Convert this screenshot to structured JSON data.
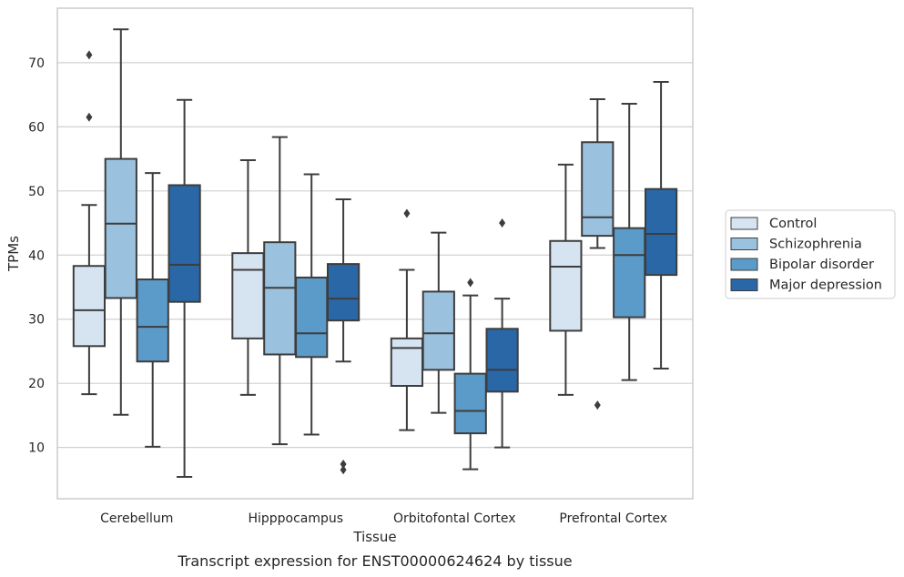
{
  "caption": "Transcript expression for ENST00000624624 by tissue",
  "chart_data": {
    "type": "box",
    "title": "",
    "xlabel": "Tissue",
    "ylabel": "TPMs",
    "categories": [
      "Cerebellum",
      "Hipppocampus",
      "Orbitofontal Cortex",
      "Prefrontal Cortex"
    ],
    "ylim": [
      2,
      78.5
    ],
    "yticks": [
      10,
      20,
      30,
      40,
      50,
      60,
      70
    ],
    "grid": "horizontal",
    "legend_position": "right",
    "series": [
      {
        "name": "Control",
        "color": "#d6e4f2",
        "boxes": [
          {
            "whislo": 18.3,
            "q1": 25.8,
            "med": 31.4,
            "q3": 38.3,
            "whishi": 47.8,
            "fliers": [
              71.2,
              61.5
            ]
          },
          {
            "whislo": 18.2,
            "q1": 27.0,
            "med": 37.7,
            "q3": 40.3,
            "whishi": 54.8,
            "fliers": []
          },
          {
            "whislo": 12.7,
            "q1": 19.6,
            "med": 25.5,
            "q3": 27.0,
            "whishi": 37.7,
            "fliers": [
              46.5
            ]
          },
          {
            "whislo": 18.2,
            "q1": 28.2,
            "med": 38.2,
            "q3": 42.2,
            "whishi": 54.1,
            "fliers": []
          }
        ]
      },
      {
        "name": "Schizophrenia",
        "color": "#9ac2df",
        "boxes": [
          {
            "whislo": 15.1,
            "q1": 33.3,
            "med": 44.9,
            "q3": 55.0,
            "whishi": 75.2,
            "fliers": []
          },
          {
            "whislo": 10.5,
            "q1": 24.5,
            "med": 34.9,
            "q3": 42.0,
            "whishi": 58.4,
            "fliers": []
          },
          {
            "whislo": 15.4,
            "q1": 22.1,
            "med": 27.8,
            "q3": 34.3,
            "whishi": 43.5,
            "fliers": []
          },
          {
            "whislo": 41.1,
            "q1": 43.0,
            "med": 45.9,
            "q3": 57.6,
            "whishi": 64.3,
            "fliers": [
              16.6
            ]
          }
        ]
      },
      {
        "name": "Bipolar disorder",
        "color": "#5b9bc9",
        "boxes": [
          {
            "whislo": 10.1,
            "q1": 23.4,
            "med": 28.8,
            "q3": 36.2,
            "whishi": 52.8,
            "fliers": []
          },
          {
            "whislo": 12.0,
            "q1": 24.1,
            "med": 27.8,
            "q3": 36.5,
            "whishi": 52.6,
            "fliers": []
          },
          {
            "whislo": 6.6,
            "q1": 12.2,
            "med": 15.7,
            "q3": 21.5,
            "whishi": 33.7,
            "fliers": [
              35.7
            ]
          },
          {
            "whislo": 20.5,
            "q1": 30.3,
            "med": 40.0,
            "q3": 44.2,
            "whishi": 63.6,
            "fliers": []
          }
        ]
      },
      {
        "name": "Major depression",
        "color": "#2a67a7",
        "boxes": [
          {
            "whislo": 5.4,
            "q1": 32.7,
            "med": 38.5,
            "q3": 50.9,
            "whishi": 64.2,
            "fliers": []
          },
          {
            "whislo": 23.4,
            "q1": 29.8,
            "med": 33.2,
            "q3": 38.6,
            "whishi": 48.7,
            "fliers": [
              7.4,
              6.5
            ]
          },
          {
            "whislo": 10.0,
            "q1": 18.7,
            "med": 22.1,
            "q3": 28.5,
            "whishi": 33.2,
            "fliers": [
              45.0
            ]
          },
          {
            "whislo": 22.3,
            "q1": 36.9,
            "med": 43.3,
            "q3": 50.3,
            "whishi": 67.0,
            "fliers": []
          }
        ]
      }
    ]
  }
}
